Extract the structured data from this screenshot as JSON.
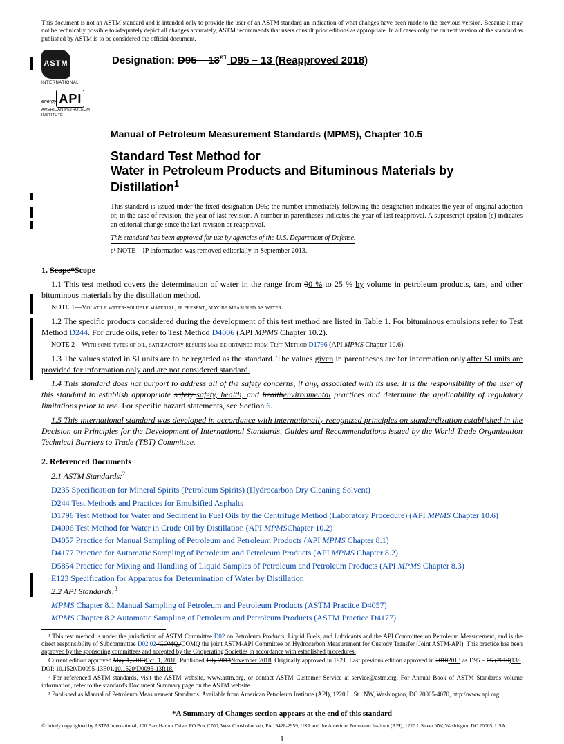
{
  "disclaimer": "This document is not an ASTM standard and is intended only to provide the user of an ASTM standard an indication of what changes have been made to the previous version. Because it may not be technically possible to adequately depict all changes accurately, ASTM recommends that users consult prior editions as appropriate. In all cases only the current version of the standard as published by ASTM is to be considered the official document.",
  "logos": {
    "astm": "ASTM",
    "intl": "INTERNATIONAL",
    "api_energy": "energy",
    "api": "API",
    "api_full": "AMERICAN PETROLEUM INSTITUTE"
  },
  "designation": {
    "label": "Designation: ",
    "old": "D95 – 13",
    "old_sup": "ε1",
    "new": " D95 – 13 (Reapproved 2018)"
  },
  "mpms": "Manual of Petroleum Measurement Standards (MPMS), Chapter 10.5",
  "title": {
    "line1": "Standard Test Method for",
    "line2": "Water in Petroleum Products and Bituminous Materials by Distillation",
    "sup": "1"
  },
  "issue_note": "This standard is issued under the fixed designation D95; the number immediately following the designation indicates the year of original adoption or, in the case of revision, the year of last revision. A number in parentheses indicates the year of last reapproval. A superscript epsilon (ε) indicates an editorial change since the last revision or reapproval.",
  "approved_note": "This standard has been approved for use by agencies of the U.S. Department of Defense.",
  "hist_note": "ε¹ NOTE—IP information was removed editorially in September 2013.",
  "s1": {
    "heading_prefix": "1. ",
    "heading_old": "Scope*",
    "heading_new": "Scope",
    "p1a": "1.1  This test method covers the determination of water in the range from ",
    "p1_old": "0",
    "p1_new": "0 %",
    "p1b": " to 25 % ",
    "p1_new2": "by",
    "p1c": " volume in petroleum products, tars, and other bituminous materials by the distillation method.",
    "note1": "NOTE 1—Volatile water-soluble material, if present, may be measured as water.",
    "p2a": "1.2  The specific products considered during the development of this test method are listed in Table  1. For bituminous emulsions refer to Test Method ",
    "d244": "D244",
    "p2b": ". For crude oils, refer to Test Method ",
    "d4006": "D4006",
    "p2c": " (API ",
    "mpms_i": "MPMS",
    "p2d": " Chapter 10.2).",
    "note2a": "NOTE 2—With some types of oil, satisfactory results may be obtained from Test Method ",
    "d1796": "D1796",
    "note2b": " (API ",
    "note2c": " Chapter 10.6).",
    "p3a": "1.3  The values stated in SI units are to be regarded as ",
    "p3_old": "the ",
    "p3b": "standard. The values ",
    "p3_new": "given",
    "p3c": " in parentheses ",
    "p3_old2": "are for information only.",
    "p3_new2": "after SI units are provided for information only and are not considered standard.",
    "p4a": "1.4  This standard does not purport to address all of the safety concerns, if any, associated with its use. It is the responsibility of the user of this standard to establish appropriate ",
    "p4_old": "safety ",
    "p4_new": "safety, health, ",
    "p4b": "and ",
    "p4_old2": "health",
    "p4_new2": "environmental",
    "p4c": " practices and determine the applicability of regulatory limitations prior to use.",
    "p4d": " For specific hazard statements, see Section ",
    "p4_sec": "6",
    "p4e": ".",
    "p5": "1.5  This international standard was developed in accordance with internationally recognized principles on standardization established in the Decision on Principles for the Development of International Standards, Guides and Recommendations issued by the World Trade Organization Technical Barriers to Trade (TBT) Committee."
  },
  "s2": {
    "heading": "2.  Referenced Documents",
    "sub1": "2.1  ASTM Standards:",
    "sub1_sup": "2",
    "refs": [
      {
        "code": "D235",
        "text": " Specification for Mineral Spirits (Petroleum Spirits) (Hydrocarbon Dry Cleaning Solvent)"
      },
      {
        "code": "D244",
        "text": " Test Methods and Practices for Emulsified Asphalts"
      },
      {
        "code": "D1796",
        "text": " Test Method for Water and Sediment in Fuel Oils by the Centrifuge Method (Laboratory Procedure) (API ",
        "ital": "MPMS",
        "tail": " Chapter 10.6)"
      },
      {
        "code": "D4006",
        "text": " Test Method for Water in Crude Oil by Distillation (API ",
        "ital": "MPMS",
        "tail": "Chapter 10.2)"
      },
      {
        "code": "D4057",
        "text": " Practice for Manual Sampling of Petroleum and Petroleum Products (API ",
        "ital": "MPMS",
        "tail": " Chapter 8.1)"
      },
      {
        "code": "D4177",
        "text": " Practice for Automatic Sampling of Petroleum and Petroleum Products (API ",
        "ital": "MPMS",
        "tail": " Chapter 8.2)"
      },
      {
        "code": "D5854",
        "text": " Practice for Mixing and Handling of Liquid Samples of Petroleum and Petroleum Products (API ",
        "ital": "MPMS",
        "tail": " Chapter 8.3)"
      },
      {
        "code": "E123",
        "text": " Specification for Apparatus for Determination of Water by Distillation"
      }
    ],
    "sub2": "2.2  API Standards:",
    "sub2_sup": "3",
    "api_refs": [
      {
        "ital": "MPMS",
        "ch": " Chapter 8.1 ",
        "text": "Manual Sampling of Petroleum and Petroleum Products (ASTM Practice ",
        "code": "D4057",
        "tail": ")"
      },
      {
        "ital": "MPMS",
        "ch": " Chapter 8.2 ",
        "text": "Automatic Sampling of Petroleum and Petroleum Products (ASTM Practice ",
        "code": "D4177",
        "tail": ")"
      }
    ]
  },
  "footnotes": {
    "f1a": "¹ This test method is under the jurisdiction of ASTM Committee ",
    "f1_d02": "D02",
    "f1b": " on Petroleum Products, Liquid Fuels, and Lubricants and the API Committee on Petroleum Measurement, and is the direct responsibility of Subcommittee ",
    "f1_d0202": "D02.02",
    "f1_old": " /COMQ,/",
    "f1c": "COMQ the joint ASTM-API Committee on Hydrocarbon Measurement for Custody Transfer (Joint ASTM-API).",
    "f1_new": " This practice has been approved by the sponsoring committees and accepted by the Cooperating Societies in accordance with established procedures.",
    "f1d": "Current edition approved ",
    "f1_old2": "May 1, 2013",
    "f1_new2": "Oct. 1, 2018",
    "f1e": ". Published ",
    "f1_old3": "July 2013",
    "f1_new3": "November 2018",
    "f1f": ". Originally approved in 1921. Last previous edition approved in ",
    "f1_old4": "2010",
    "f1_new4": "2013",
    "f1g": " as D95 – ",
    "f1_old5": "05 (2010)",
    "f1_new5": "13ᵉ¹",
    "f1h": ". DOI: ",
    "f1_old6": "10.1520/D0095-13E01.",
    "f1_new6": "10.1520/D0095-13R18.",
    "f2": "² For referenced ASTM standards, visit the ASTM website, www.astm.org, or contact ASTM Customer Service at service@astm.org. For Annual Book of ASTM Standards volume information, refer to the standard's Document Summary page on the ASTM website.",
    "f3": "³ Published as Manual of Petroleum Measurement Standards. Available from American Petroleum Institute (API), 1220 L. St., NW, Washington, DC 20005-4070, http://www.api.org.."
  },
  "summary": "*A Summary of Changes section appears at the end of this standard",
  "copyright": "© Jointly copyrighted by ASTM International, 100 Barr Harbor Drive, PO Box C700, West Conshohocken, PA 19428-2959, USA and the American Petroleum Institute (API), 1220 L Street NW, Washington DC 20005, USA",
  "pagenum": "1"
}
